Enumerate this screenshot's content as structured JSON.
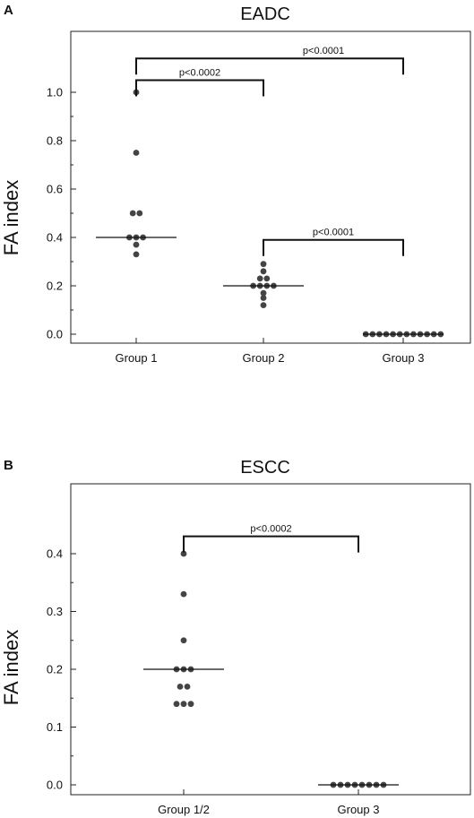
{
  "chart_data": [
    {
      "type": "scatter",
      "panel": "A",
      "title": "EADC",
      "ylabel": "FA index",
      "xlabel": "",
      "ylim": [
        0,
        1.0
      ],
      "yticks": [
        "0.0",
        "0.2",
        "0.4",
        "0.6",
        "0.8",
        "1.0"
      ],
      "categories": [
        "Group 1",
        "Group 2",
        "Group 3"
      ],
      "grid": false,
      "series": [
        {
          "category": "Group 1",
          "values": [
            1.0,
            0.75,
            0.5,
            0.5,
            0.4,
            0.4,
            0.4,
            0.37,
            0.33
          ],
          "median": 0.4
        },
        {
          "category": "Group 2",
          "values": [
            0.29,
            0.26,
            0.23,
            0.23,
            0.2,
            0.2,
            0.2,
            0.2,
            0.17,
            0.15,
            0.12
          ],
          "median": 0.2
        },
        {
          "category": "Group 3",
          "values": [
            0,
            0,
            0,
            0,
            0,
            0,
            0,
            0,
            0,
            0,
            0,
            0
          ],
          "median": 0
        }
      ],
      "annotations": [
        {
          "from": "Group 1",
          "to": "Group 3",
          "text": "p<0.0001",
          "level": 1.14
        },
        {
          "from": "Group 1",
          "to": "Group 2",
          "text": "p<0.0002",
          "level": 1.05
        },
        {
          "from": "Group 2",
          "to": "Group 3",
          "text": "p<0.0001",
          "level": 0.39
        }
      ]
    },
    {
      "type": "scatter",
      "panel": "B",
      "title": "ESCC",
      "ylabel": "FA index",
      "xlabel": "",
      "ylim": [
        0,
        0.4
      ],
      "yticks": [
        "0.0",
        "0.1",
        "0.2",
        "0.3",
        "0.4"
      ],
      "categories": [
        "Group 1/2",
        "Group 3"
      ],
      "grid": false,
      "series": [
        {
          "category": "Group 1/2",
          "values": [
            0.4,
            0.33,
            0.25,
            0.2,
            0.2,
            0.2,
            0.17,
            0.17,
            0.14,
            0.14,
            0.14
          ],
          "median": 0.2
        },
        {
          "category": "Group 3",
          "values": [
            0,
            0,
            0,
            0,
            0,
            0,
            0,
            0
          ],
          "median": 0
        }
      ],
      "annotations": [
        {
          "from": "Group 1/2",
          "to": "Group 3",
          "text": "p<0.0002",
          "level": 0.43
        }
      ]
    }
  ]
}
